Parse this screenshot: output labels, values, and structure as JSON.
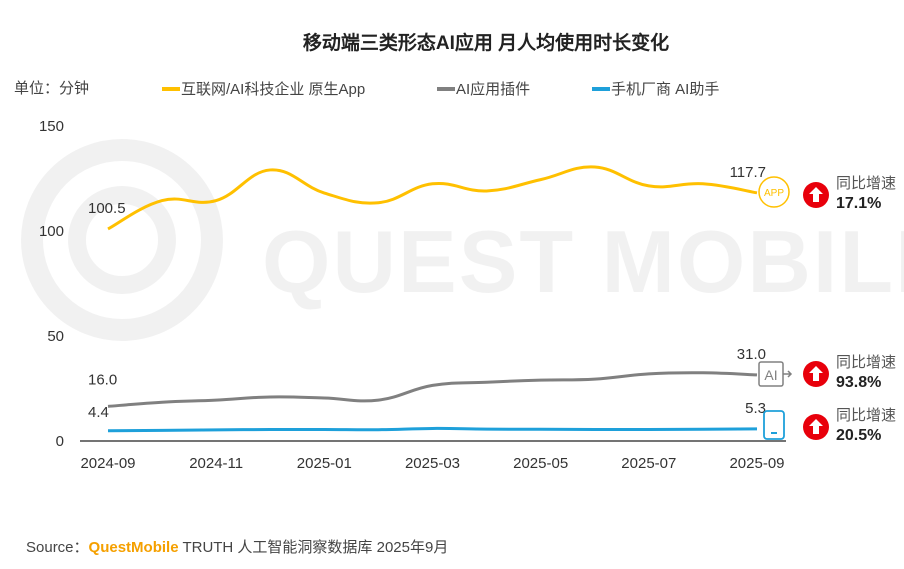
{
  "chart_data": {
    "type": "line",
    "title": "移动端三类形态AI应用 月人均使用时长变化",
    "unit_label": "单位：分钟",
    "ylim": [
      0,
      150
    ],
    "yticks": [
      "0",
      "50",
      "100",
      "150"
    ],
    "ytick_values": [
      0,
      50,
      100,
      150
    ],
    "x": [
      "2024-09",
      "2024-10",
      "2024-11",
      "2024-12",
      "2025-01",
      "2025-02",
      "2025-03",
      "2025-04",
      "2025-05",
      "2025-06",
      "2025-07",
      "2025-08",
      "2025-09"
    ],
    "xtick_labels": [
      "2024-09",
      "2024-11",
      "2025-01",
      "2025-03",
      "2025-05",
      "2025-07",
      "2025-09"
    ],
    "grid": false,
    "legend_position": "top",
    "series": [
      {
        "name": "互联网/AI科技企业 原生App",
        "color": "#FFC000",
        "values": [
          100.5,
          114,
          114,
          128.6,
          117.6,
          113,
          122,
          118.6,
          124,
          130,
          121,
          122,
          117.7
        ],
        "start_label": "100.5",
        "end_label": "117.7",
        "icon_text": "APP",
        "growth_label": "同比增速",
        "growth_value": "17.1%"
      },
      {
        "name": "AI应用插件",
        "color": "#808080",
        "values": [
          16.0,
          18,
          19,
          20.5,
          20,
          19,
          26,
          27.5,
          28.5,
          29,
          31.5,
          32,
          31.0
        ],
        "start_label": "16.0",
        "end_label": "31.0",
        "icon_text": "AI",
        "growth_label": "同比增速",
        "growth_value": "93.8%"
      },
      {
        "name": "手机厂商 AI助手",
        "color": "#1EA0DA",
        "values": [
          4.4,
          4.6,
          4.8,
          5.0,
          5.0,
          4.9,
          5.5,
          5.2,
          5.1,
          5.0,
          5.0,
          5.1,
          5.3
        ],
        "start_label": "4.4",
        "end_label": "5.3",
        "icon_text": "",
        "growth_label": "同比增速",
        "growth_value": "20.5%"
      }
    ]
  },
  "watermark": "QUEST MOBILE",
  "source": {
    "prefix": "Source：",
    "brand": "QuestMobile",
    "text": " TRUTH 人工智能洞察数据库 2025年9月"
  },
  "colors": {
    "brand": "#F5A000",
    "arrow": "#E8000B"
  }
}
